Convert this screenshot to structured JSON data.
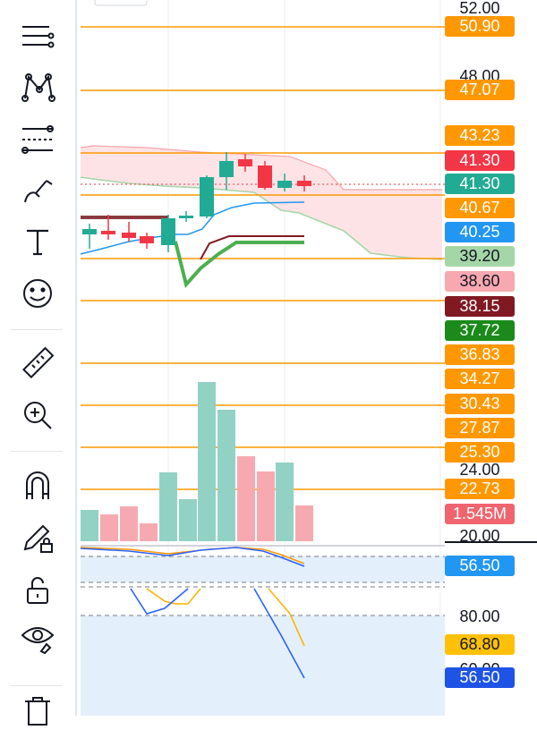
{
  "toolbar": {
    "tools": [
      {
        "name": "lines-tool"
      },
      {
        "name": "pattern-tool"
      },
      {
        "name": "fib-tool"
      },
      {
        "name": "brush-tool"
      },
      {
        "name": "text-tool"
      },
      {
        "name": "emoji-tool"
      },
      {
        "name": "ruler-tool"
      },
      {
        "name": "zoom-in-tool"
      },
      {
        "name": "magnet-tool"
      },
      {
        "name": "lock-drawing-tool"
      },
      {
        "name": "unlock-tool"
      },
      {
        "name": "eye-tool"
      },
      {
        "name": "trash-tool"
      }
    ]
  },
  "price_axis": {
    "labels": [
      "52.00",
      "48.00",
      "24.00",
      "20.00",
      "80.00",
      "60.00"
    ]
  },
  "badges": [
    {
      "text": "50.90",
      "color": "#ff9800",
      "text_color": "#ffffff"
    },
    {
      "text": "47.07",
      "color": "#ff9800",
      "text_color": "#ffffff"
    },
    {
      "text": "43.23",
      "color": "#ff9800",
      "text_color": "#ffffff"
    },
    {
      "text": "41.30",
      "color": "#f23645",
      "text_color": "#ffffff"
    },
    {
      "text": "41.30",
      "color": "#22ab94",
      "text_color": "#ffffff"
    },
    {
      "text": "40.67",
      "color": "#ff9800",
      "text_color": "#ffffff"
    },
    {
      "text": "40.25",
      "color": "#2196f3",
      "text_color": "#ffffff"
    },
    {
      "text": "39.20",
      "color": "#a5d6a7",
      "text_color": "#131722"
    },
    {
      "text": "38.60",
      "color": "#f8a8b0",
      "text_color": "#131722"
    },
    {
      "text": "38.15",
      "color": "#801922",
      "text_color": "#ffffff"
    },
    {
      "text": "37.72",
      "color": "#1b8a1b",
      "text_color": "#ffffff"
    },
    {
      "text": "36.83",
      "color": "#ff9800",
      "text_color": "#ffffff"
    },
    {
      "text": "34.27",
      "color": "#ff9800",
      "text_color": "#ffffff"
    },
    {
      "text": "30.43",
      "color": "#ff9800",
      "text_color": "#ffffff"
    },
    {
      "text": "27.87",
      "color": "#ff9800",
      "text_color": "#ffffff"
    },
    {
      "text": "25.30",
      "color": "#ff9800",
      "text_color": "#ffffff"
    },
    {
      "text": "22.73",
      "color": "#ff9800",
      "text_color": "#ffffff"
    },
    {
      "text": "1.545M",
      "color": "#f0646e",
      "text_color": "#ffffff"
    },
    {
      "text": "56.50",
      "color": "#2196f3",
      "text_color": "#ffffff"
    },
    {
      "text": "68.80",
      "color": "#ffc107",
      "text_color": "#131722"
    },
    {
      "text": "56.50",
      "color": "#1e53e5",
      "text_color": "#ffffff"
    }
  ],
  "colors": {
    "level_line": "#ff9800",
    "up": "#22ab94",
    "down": "#f23645",
    "cloud": "#fde3e6",
    "rsi_band": "#e3f0fb"
  }
}
